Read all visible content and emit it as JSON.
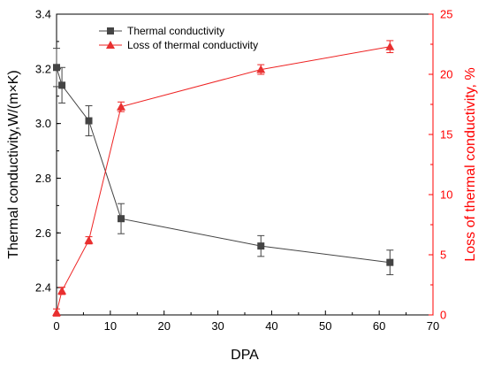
{
  "colors": {
    "left_axis": "#000000",
    "right_axis": "#ff0000",
    "series_thermal": "#444444",
    "series_loss": "#ee2222",
    "series_loss_marker": "#e83030"
  },
  "chart_data": {
    "type": "line",
    "xlabel": "DPA",
    "xlim": [
      0,
      70
    ],
    "xticks": [
      "0",
      "10",
      "20",
      "30",
      "40",
      "50",
      "60",
      "70"
    ],
    "ylabel_left": "Thermal conductivity,W/(m×K)",
    "ylim_left": [
      2.3,
      3.4
    ],
    "yticks_left": [
      "2.4",
      "2.6",
      "2.8",
      "3.0",
      "3.2",
      "3.4"
    ],
    "ylabel_right": "Loss of thermal conductivity, %",
    "ylim_right": [
      0,
      25
    ],
    "yticks_right": [
      "0",
      "5",
      "10",
      "15",
      "20",
      "25"
    ],
    "legend_position": "top-left",
    "grid": false,
    "series": [
      {
        "name": "Thermal conductivity",
        "axis": "left",
        "marker": "square",
        "x": [
          0,
          1,
          6,
          12,
          38,
          62
        ],
        "y": [
          3.205,
          3.14,
          3.01,
          2.652,
          2.552,
          2.492
        ],
        "err": [
          0.07,
          0.065,
          0.055,
          0.055,
          0.038,
          0.045
        ]
      },
      {
        "name": "Loss of thermal conductivity",
        "axis": "right",
        "marker": "triangle",
        "x": [
          0,
          1,
          6,
          12,
          38,
          62
        ],
        "y": [
          0.2,
          2.0,
          6.2,
          17.3,
          20.4,
          22.3
        ],
        "err": [
          0.3,
          0.3,
          0.3,
          0.4,
          0.4,
          0.5
        ]
      }
    ]
  }
}
